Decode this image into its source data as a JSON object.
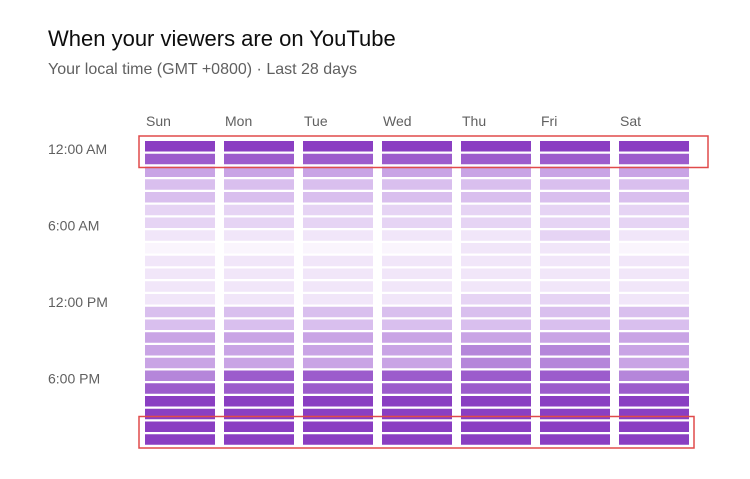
{
  "header": {
    "title": "When your viewers are on YouTube",
    "subtitle": "Your local time (GMT +0800) · Last 28 days"
  },
  "colors": {
    "scale": [
      "#faf5fd",
      "#f1e6f9",
      "#e6d4f4",
      "#d9bfee",
      "#c9a4e5",
      "#b586da",
      "#9c5ccc",
      "#8a3ec2"
    ],
    "highlight_border": "#e04a4a"
  },
  "chart_data": {
    "type": "heatmap",
    "title": "When your viewers are on YouTube",
    "subtitle": "Your local time (GMT +0800) · Last 28 days",
    "days": [
      "Sun",
      "Mon",
      "Tue",
      "Wed",
      "Thu",
      "Fri",
      "Sat"
    ],
    "y_tick_labels": [
      "12:00 AM",
      "6:00 AM",
      "12:00 PM",
      "6:00 PM"
    ],
    "y_tick_hours": [
      0,
      6,
      12,
      18
    ],
    "hours": [
      0,
      1,
      2,
      3,
      4,
      5,
      6,
      7,
      8,
      9,
      10,
      11,
      12,
      13,
      14,
      15,
      16,
      17,
      18,
      19,
      20,
      21,
      22,
      23
    ],
    "intensity_levels": 8,
    "values": [
      [
        7,
        6,
        4,
        3,
        3,
        2,
        2,
        1,
        0,
        1,
        1,
        1,
        1,
        3,
        3,
        4,
        4,
        4,
        5,
        6,
        7,
        7,
        7,
        7
      ],
      [
        7,
        6,
        4,
        3,
        3,
        2,
        2,
        1,
        0,
        1,
        1,
        1,
        1,
        3,
        3,
        4,
        4,
        4,
        6,
        6,
        7,
        7,
        7,
        7
      ],
      [
        7,
        6,
        4,
        3,
        3,
        2,
        2,
        1,
        0,
        1,
        1,
        1,
        1,
        3,
        3,
        4,
        4,
        4,
        6,
        6,
        7,
        7,
        7,
        7
      ],
      [
        7,
        6,
        4,
        3,
        3,
        2,
        2,
        1,
        0,
        1,
        1,
        1,
        1,
        3,
        3,
        4,
        4,
        4,
        6,
        6,
        7,
        7,
        7,
        7
      ],
      [
        7,
        6,
        4,
        3,
        3,
        2,
        2,
        1,
        1,
        1,
        1,
        1,
        2,
        3,
        3,
        4,
        5,
        5,
        6,
        6,
        7,
        7,
        7,
        7
      ],
      [
        7,
        6,
        4,
        3,
        3,
        2,
        2,
        2,
        1,
        1,
        1,
        1,
        2,
        3,
        3,
        4,
        5,
        5,
        6,
        6,
        7,
        7,
        7,
        7
      ],
      [
        7,
        6,
        4,
        3,
        3,
        2,
        2,
        1,
        0,
        1,
        1,
        1,
        1,
        3,
        3,
        4,
        4,
        4,
        5,
        6,
        7,
        7,
        7,
        7
      ]
    ],
    "highlighted_hours": [
      [
        0,
        1
      ],
      [
        22,
        23
      ]
    ],
    "legend": "none",
    "grid": false
  }
}
